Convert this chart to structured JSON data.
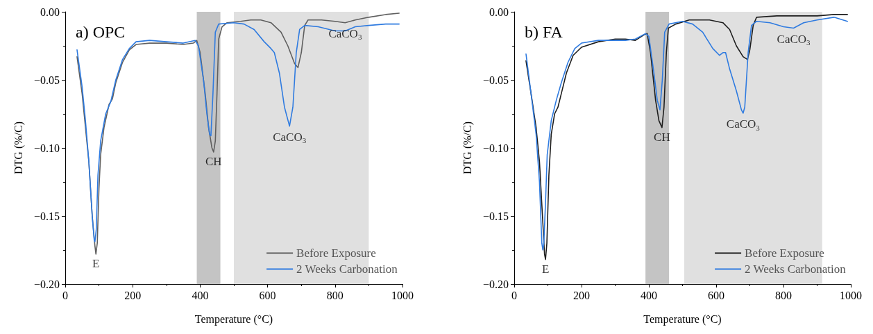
{
  "chart_data": [
    {
      "type": "line",
      "title": "a) OPC",
      "xlabel": "Temperature (°C)",
      "ylabel": "DTG (%/C)",
      "xlim": [
        0,
        1000
      ],
      "xticks": [
        0,
        200,
        400,
        600,
        800,
        1000
      ],
      "ylim": [
        -0.2,
        0
      ],
      "yticks": [
        {
          "value": -0.2,
          "label": "−0.20"
        },
        {
          "value": -0.15,
          "label": "−0.15"
        },
        {
          "value": -0.1,
          "label": "−0.10"
        },
        {
          "value": -0.05,
          "label": "−0.05"
        },
        {
          "value": 0,
          "label": "0.00"
        }
      ],
      "grid": false,
      "legend": "bottom right",
      "marker": "none",
      "line_style": "solid",
      "bands": [
        {
          "axis": "x",
          "from": 390,
          "to": 460,
          "label": null,
          "color": "#c4c4c4"
        },
        {
          "axis": "x",
          "from": 500,
          "to": 900,
          "label": null,
          "color": "#e0e0e0"
        }
      ],
      "annotations": [
        {
          "text": "E",
          "x": 91,
          "y": -0.178
        },
        {
          "text": "CH",
          "x": 440,
          "y": -0.103
        },
        {
          "text": "CaCO$_{3}$",
          "x": 665,
          "y": -0.084
        },
        {
          "text": "CaCO$_{3}$",
          "x": 830,
          "y": -0.008
        }
      ],
      "series": [
        {
          "name": "Before Exposure",
          "color": "#5f5f5f",
          "x": [
            35,
            50,
            60,
            70,
            80,
            88,
            91,
            95,
            100,
            105,
            115,
            130,
            140,
            150,
            170,
            190,
            210,
            250,
            300,
            350,
            380,
            390,
            400,
            415,
            425,
            435,
            440,
            445,
            450,
            455,
            465,
            480,
            520,
            550,
            580,
            610,
            640,
            660,
            680,
            690,
            700,
            710,
            720,
            760,
            800,
            830,
            860,
            900,
            950,
            990
          ],
          "values": [
            -0.033,
            -0.06,
            -0.085,
            -0.11,
            -0.15,
            -0.172,
            -0.178,
            -0.17,
            -0.13,
            -0.105,
            -0.085,
            -0.068,
            -0.064,
            -0.052,
            -0.037,
            -0.028,
            -0.024,
            -0.023,
            -0.023,
            -0.024,
            -0.023,
            -0.021,
            -0.03,
            -0.06,
            -0.085,
            -0.1,
            -0.103,
            -0.095,
            -0.06,
            -0.02,
            -0.011,
            -0.008,
            -0.007,
            -0.006,
            -0.006,
            -0.008,
            -0.015,
            -0.025,
            -0.038,
            -0.041,
            -0.03,
            -0.01,
            -0.006,
            -0.006,
            -0.007,
            -0.008,
            -0.006,
            -0.004,
            -0.002,
            -0.001
          ]
        },
        {
          "name": "2 Weeks Carbonation",
          "color": "#2f7be0",
          "x": [
            35,
            50,
            60,
            70,
            80,
            86,
            88,
            92,
            97,
            105,
            120,
            135,
            150,
            170,
            190,
            210,
            250,
            300,
            350,
            385,
            395,
            410,
            420,
            428,
            432,
            438,
            445,
            455,
            500,
            530,
            560,
            590,
            610,
            620,
            635,
            650,
            665,
            675,
            685,
            695,
            710,
            750,
            800,
            830,
            860,
            900,
            950,
            990
          ],
          "values": [
            -0.028,
            -0.055,
            -0.08,
            -0.11,
            -0.15,
            -0.168,
            -0.169,
            -0.16,
            -0.12,
            -0.095,
            -0.075,
            -0.066,
            -0.05,
            -0.035,
            -0.027,
            -0.022,
            -0.021,
            -0.022,
            -0.023,
            -0.021,
            -0.025,
            -0.05,
            -0.075,
            -0.09,
            -0.091,
            -0.06,
            -0.015,
            -0.009,
            -0.008,
            -0.009,
            -0.013,
            -0.022,
            -0.027,
            -0.03,
            -0.045,
            -0.07,
            -0.084,
            -0.07,
            -0.03,
            -0.013,
            -0.01,
            -0.011,
            -0.014,
            -0.014,
            -0.011,
            -0.01,
            -0.009,
            -0.009
          ]
        }
      ]
    },
    {
      "type": "line",
      "title": "b) FA",
      "xlabel": "Temperature (°C)",
      "ylabel": "DTG (%/C)",
      "xlim": [
        0,
        1000
      ],
      "xticks": [
        0,
        200,
        400,
        600,
        800,
        1000
      ],
      "ylim": [
        -0.2,
        0
      ],
      "yticks": [
        {
          "value": -0.2,
          "label": "−0.20"
        },
        {
          "value": -0.15,
          "label": "−0.15"
        },
        {
          "value": -0.1,
          "label": "−0.10"
        },
        {
          "value": -0.05,
          "label": "−0.05"
        },
        {
          "value": 0,
          "label": "0.00"
        }
      ],
      "grid": false,
      "legend": "bottom right",
      "marker": "none",
      "line_style": "solid",
      "bands": [
        {
          "axis": "x",
          "from": 390,
          "to": 460,
          "label": null,
          "color": "#c4c4c4"
        },
        {
          "axis": "x",
          "from": 505,
          "to": 915,
          "label": null,
          "color": "#e0e0e0"
        }
      ],
      "annotations": [
        {
          "text": "E",
          "x": 93,
          "y": -0.182
        },
        {
          "text": "CH",
          "x": 439,
          "y": -0.085
        },
        {
          "text": "CaCO$_{3}$",
          "x": 680,
          "y": -0.0745
        },
        {
          "text": "CaCO$_{3}$",
          "x": 830,
          "y": -0.012
        }
      ],
      "series": [
        {
          "name": "Before Exposure",
          "color": "#1e1e1e",
          "x": [
            35,
            50,
            65,
            75,
            85,
            90,
            93,
            97,
            103,
            110,
            120,
            130,
            140,
            155,
            175,
            200,
            250,
            300,
            330,
            360,
            385,
            395,
            405,
            420,
            430,
            439,
            445,
            452,
            458,
            480,
            520,
            580,
            620,
            640,
            660,
            680,
            693,
            700,
            710,
            720,
            780,
            850,
            900,
            950,
            990
          ],
          "values": [
            -0.036,
            -0.06,
            -0.085,
            -0.11,
            -0.155,
            -0.178,
            -0.182,
            -0.17,
            -0.12,
            -0.09,
            -0.075,
            -0.07,
            -0.06,
            -0.045,
            -0.032,
            -0.026,
            -0.022,
            -0.02,
            -0.02,
            -0.021,
            -0.017,
            -0.016,
            -0.03,
            -0.065,
            -0.08,
            -0.085,
            -0.07,
            -0.03,
            -0.012,
            -0.009,
            -0.006,
            -0.006,
            -0.008,
            -0.013,
            -0.025,
            -0.033,
            -0.035,
            -0.028,
            -0.01,
            -0.004,
            -0.003,
            -0.003,
            -0.003,
            -0.002,
            -0.002
          ]
        },
        {
          "name": "2 Weeks Carbonation",
          "color": "#2f7be0",
          "x": [
            35,
            50,
            65,
            75,
            82,
            85,
            88,
            93,
            98,
            110,
            125,
            140,
            160,
            180,
            200,
            250,
            300,
            330,
            360,
            390,
            400,
            415,
            425,
            433,
            440,
            447,
            460,
            500,
            530,
            560,
            590,
            610,
            620,
            628,
            640,
            660,
            675,
            680,
            685,
            695,
            705,
            720,
            760,
            800,
            830,
            860,
            900,
            950,
            990
          ],
          "values": [
            -0.031,
            -0.06,
            -0.09,
            -0.125,
            -0.17,
            -0.175,
            -0.17,
            -0.14,
            -0.105,
            -0.08,
            -0.065,
            -0.052,
            -0.037,
            -0.027,
            -0.023,
            -0.021,
            -0.021,
            -0.021,
            -0.02,
            -0.016,
            -0.018,
            -0.045,
            -0.065,
            -0.072,
            -0.05,
            -0.015,
            -0.009,
            -0.007,
            -0.009,
            -0.015,
            -0.027,
            -0.032,
            -0.03,
            -0.03,
            -0.042,
            -0.058,
            -0.072,
            -0.0745,
            -0.07,
            -0.03,
            -0.01,
            -0.007,
            -0.008,
            -0.011,
            -0.012,
            -0.008,
            -0.006,
            -0.004,
            -0.007
          ]
        }
      ]
    }
  ]
}
